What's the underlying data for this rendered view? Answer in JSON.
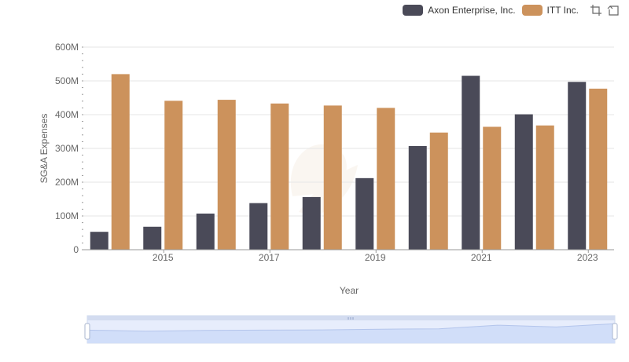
{
  "chart_data": {
    "type": "bar",
    "categories": [
      "2014",
      "2015",
      "2016",
      "2017",
      "2018",
      "2019",
      "2020",
      "2021",
      "2022",
      "2023"
    ],
    "x_tick_labels": [
      "2015",
      "2017",
      "2019",
      "2021",
      "2023"
    ],
    "series": [
      {
        "name": "Axon Enterprise, Inc.",
        "color": "#4a4a58",
        "values": [
          53,
          68,
          107,
          138,
          156,
          212,
          307,
          515,
          401,
          497
        ]
      },
      {
        "name": "ITT Inc.",
        "color": "#cc925c",
        "values": [
          520,
          441,
          444,
          433,
          427,
          420,
          347,
          364,
          368,
          477
        ]
      }
    ],
    "y_ticks": [
      0,
      100,
      200,
      300,
      400,
      500,
      600
    ],
    "y_tick_labels": [
      "0",
      "100M",
      "200M",
      "300M",
      "400M",
      "500M",
      "600M"
    ],
    "ylim": [
      0,
      600
    ],
    "xlabel": "Year",
    "ylabel": "SG&A Expenses",
    "legend_position": "top-right",
    "grid": true
  }
}
